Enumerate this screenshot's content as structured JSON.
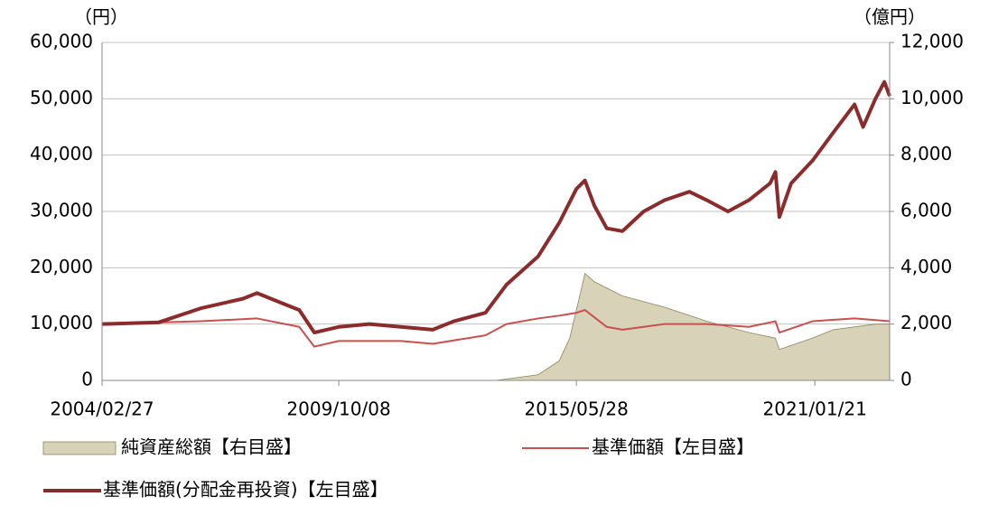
{
  "chart_data": {
    "type": "line",
    "y_unit_label": "（円）",
    "y2_unit_label": "（億円）",
    "xlim": [
      "2004/02/27",
      "2022/10/31"
    ],
    "xticks": [
      "2004/02/27",
      "2009/10/08",
      "2015/05/28",
      "2021/01/21"
    ],
    "ylim": [
      0,
      60000
    ],
    "yticks": [
      0,
      {
        "value": 10000,
        "label": "10,000"
      },
      {
        "value": 20000,
        "label": "20,000"
      },
      {
        "value": 30000,
        "label": "30,000"
      },
      {
        "value": 40000,
        "label": "40,000"
      },
      {
        "value": 50000,
        "label": "50,000"
      },
      {
        "value": 60000,
        "label": "60,000"
      }
    ],
    "y2lim": [
      0,
      12000
    ],
    "y2ticks": [
      0,
      {
        "value": 2000,
        "label": "2,000"
      },
      {
        "value": 4000,
        "label": "4,000"
      },
      {
        "value": 6000,
        "label": "6,000"
      },
      {
        "value": 8000,
        "label": "8,000"
      },
      {
        "value": 10000,
        "label": "10,000"
      },
      {
        "value": 12000,
        "label": "12,000"
      }
    ],
    "grid": true,
    "series": [
      {
        "name": "純資産総額【右目盛】",
        "kind": "area",
        "axis": "y2",
        "color": "#d8d3b8",
        "x": [
          "2004/02/27",
          "2013/06/30",
          "2014/06/30",
          "2014/12/31",
          "2015/03/31",
          "2015/05/28",
          "2015/08/10",
          "2015/10/31",
          "2016/06/30",
          "2017/06/30",
          "2018/06/30",
          "2019/06/30",
          "2020/02/15",
          "2020/03/20",
          "2020/12/31",
          "2021/06/30",
          "2022/06/30",
          "2022/10/31"
        ],
        "values": [
          0,
          0,
          200,
          700,
          1500,
          2500,
          3800,
          3500,
          3000,
          2600,
          2100,
          1700,
          1500,
          1100,
          1500,
          1800,
          2000,
          2000
        ]
      },
      {
        "name": "基準価額【左目盛】",
        "kind": "line",
        "color": "#c9504f",
        "x": [
          "2004/02/27",
          "2006/06/30",
          "2007/10/31",
          "2008/10/31",
          "2009/03/10",
          "2009/10/08",
          "2011/03/31",
          "2011/12/31",
          "2013/03/31",
          "2013/09/30",
          "2014/06/30",
          "2014/12/31",
          "2015/05/28",
          "2015/08/10",
          "2016/02/15",
          "2016/06/30",
          "2017/06/30",
          "2018/06/30",
          "2019/06/30",
          "2020/02/15",
          "2020/03/20",
          "2020/12/31",
          "2021/12/31",
          "2022/10/31"
        ],
        "values": [
          10000,
          10500,
          11000,
          9500,
          6000,
          7000,
          7000,
          6500,
          8000,
          10000,
          11000,
          11500,
          12000,
          12500,
          9500,
          9000,
          10000,
          10000,
          9500,
          10500,
          8500,
          10500,
          11000,
          10500
        ]
      },
      {
        "name": "基準価額(分配金再投資)【左目盛】",
        "kind": "line",
        "color": "#8b2b2b",
        "x": [
          "2004/02/27",
          "2005/06/30",
          "2006/06/30",
          "2007/06/30",
          "2007/10/31",
          "2008/06/30",
          "2008/10/31",
          "2009/03/10",
          "2009/10/08",
          "2010/06/30",
          "2011/03/31",
          "2011/12/31",
          "2012/06/30",
          "2013/03/31",
          "2013/09/30",
          "2014/06/30",
          "2014/12/31",
          "2015/05/28",
          "2015/08/10",
          "2015/10/31",
          "2016/02/15",
          "2016/06/30",
          "2016/12/31",
          "2017/06/30",
          "2018/01/31",
          "2018/06/30",
          "2018/12/31",
          "2019/06/30",
          "2019/12/31",
          "2020/02/15",
          "2020/03/20",
          "2020/06/30",
          "2020/12/31",
          "2021/06/30",
          "2021/12/31",
          "2022/03/15",
          "2022/06/30",
          "2022/09/15",
          "2022/10/31"
        ],
        "values": [
          10000,
          10300,
          12800,
          14500,
          15500,
          13500,
          12500,
          8500,
          9500,
          10000,
          9500,
          9000,
          10500,
          12000,
          17000,
          22000,
          28000,
          34000,
          35500,
          31000,
          27000,
          26500,
          30000,
          32000,
          33500,
          32000,
          30000,
          32000,
          35000,
          37000,
          29000,
          35000,
          39000,
          44000,
          49000,
          45000,
          50000,
          53000,
          50500
        ]
      }
    ]
  }
}
